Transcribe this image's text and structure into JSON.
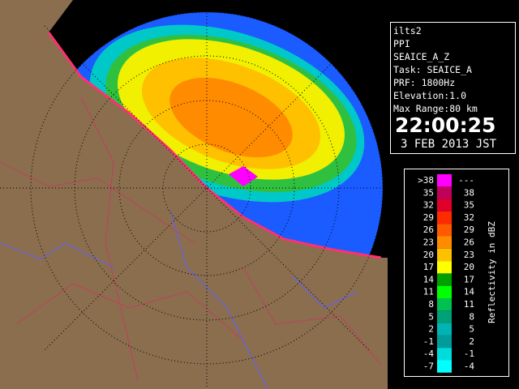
{
  "info": {
    "station": "ilts2",
    "mode": "PPI",
    "product": "SEAICE_A_Z",
    "task": "Task: SEAICE_A",
    "prf": "PRF: 1800Hz",
    "elevation": "Elevation:1.0",
    "max_range": "Max Range:80 km",
    "time": "22:00:25",
    "date": "3 FEB 2013 JST"
  },
  "legend": {
    "title": "Reflectivity in dBZ",
    "rows": [
      {
        "label": ">38",
        "upper": "---",
        "color": "#ff00ff"
      },
      {
        "label": "35",
        "upper": "38",
        "color": "#c0005a"
      },
      {
        "label": "32",
        "upper": "35",
        "color": "#e0002a"
      },
      {
        "label": "29",
        "upper": "32",
        "color": "#ff2a00"
      },
      {
        "label": "26",
        "upper": "29",
        "color": "#ff5a00"
      },
      {
        "label": "23",
        "upper": "26",
        "color": "#ff8c00"
      },
      {
        "label": "20",
        "upper": "23",
        "color": "#ffc000"
      },
      {
        "label": "17",
        "upper": "20",
        "color": "#ffff00"
      },
      {
        "label": "14",
        "upper": "17",
        "color": "#00a000"
      },
      {
        "label": "11",
        "upper": "14",
        "color": "#00ff00"
      },
      {
        "label": "8",
        "upper": "11",
        "color": "#00c050"
      },
      {
        "label": "5",
        "upper": "8",
        "color": "#00a078"
      },
      {
        "label": "2",
        "upper": "5",
        "color": "#00b4b4"
      },
      {
        "label": "-1",
        "upper": "2",
        "color": "#009c9c"
      },
      {
        "label": "-4",
        "upper": "-1",
        "color": "#00dcdc"
      },
      {
        "label": "-7",
        "upper": "-4",
        "color": "#00ffff"
      }
    ]
  }
}
